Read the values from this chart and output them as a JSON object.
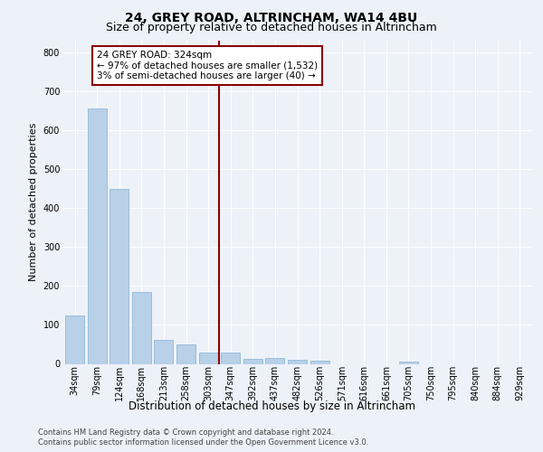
{
  "title1": "24, GREY ROAD, ALTRINCHAM, WA14 4BU",
  "title2": "Size of property relative to detached houses in Altrincham",
  "xlabel": "Distribution of detached houses by size in Altrincham",
  "ylabel": "Number of detached properties",
  "categories": [
    "34sqm",
    "79sqm",
    "124sqm",
    "168sqm",
    "213sqm",
    "258sqm",
    "303sqm",
    "347sqm",
    "392sqm",
    "437sqm",
    "482sqm",
    "526sqm",
    "571sqm",
    "616sqm",
    "661sqm",
    "705sqm",
    "750sqm",
    "795sqm",
    "840sqm",
    "884sqm",
    "929sqm"
  ],
  "values": [
    125,
    655,
    450,
    185,
    62,
    50,
    28,
    28,
    12,
    15,
    10,
    7,
    0,
    0,
    0,
    5,
    0,
    0,
    0,
    0,
    0
  ],
  "bar_color": "#b8d0e8",
  "bar_edgecolor": "#90b8d8",
  "property_line_x": 6.5,
  "property_line_color": "#8b0000",
  "annotation_text": "24 GREY ROAD: 324sqm\n← 97% of detached houses are smaller (1,532)\n3% of semi-detached houses are larger (40) →",
  "annotation_box_color": "#ffffff",
  "annotation_box_edgecolor": "#8b0000",
  "ylim": [
    0,
    830
  ],
  "yticks": [
    0,
    100,
    200,
    300,
    400,
    500,
    600,
    700,
    800
  ],
  "footer1": "Contains HM Land Registry data © Crown copyright and database right 2024.",
  "footer2": "Contains public sector information licensed under the Open Government Licence v3.0.",
  "bg_color": "#edf2f9",
  "plot_bg_color": "#edf2f9",
  "grid_color": "#ffffff",
  "title1_fontsize": 10,
  "title2_fontsize": 9,
  "ylabel_fontsize": 8,
  "xlabel_fontsize": 8.5,
  "tick_fontsize": 7,
  "footer_fontsize": 6,
  "ann_fontsize": 7.5
}
